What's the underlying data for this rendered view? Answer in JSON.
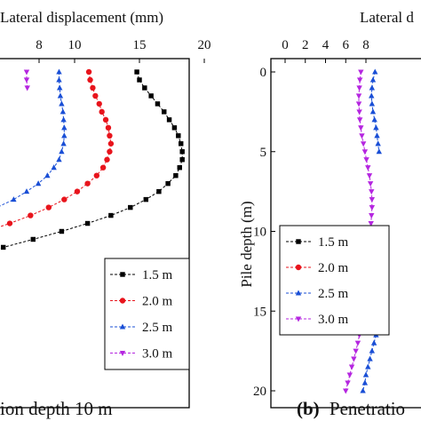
{
  "chart_data": [
    {
      "type": "line",
      "panel": "a",
      "xlabel": "Lateral displacement (mm)",
      "ylabel": "",
      "x_ticks": [
        "8",
        "10",
        "15",
        "20"
      ],
      "xlim": [
        0,
        20
      ],
      "ylim": [
        0,
        20
      ],
      "y_inverted": true,
      "legend_position": "bottom-right",
      "caption_label": "",
      "caption_text": "ion depth 10 m",
      "series": [
        {
          "name": "1.5 m",
          "marker": "square",
          "color": "#000000",
          "points": [
            [
              14.8,
              0
            ],
            [
              15.0,
              0.5
            ],
            [
              15.4,
              1
            ],
            [
              15.9,
              1.5
            ],
            [
              16.4,
              2
            ],
            [
              16.9,
              2.5
            ],
            [
              17.3,
              3
            ],
            [
              17.7,
              3.5
            ],
            [
              18.0,
              4
            ],
            [
              18.2,
              4.5
            ],
            [
              18.3,
              5
            ],
            [
              18.3,
              5.5
            ],
            [
              18.1,
              6
            ],
            [
              17.8,
              6.5
            ],
            [
              17.2,
              7
            ],
            [
              16.5,
              7.5
            ],
            [
              15.5,
              8
            ],
            [
              14.3,
              8.5
            ],
            [
              12.8,
              9
            ],
            [
              11.0,
              9.5
            ],
            [
              9.0,
              10
            ],
            [
              6.8,
              10.5
            ],
            [
              4.5,
              11
            ],
            [
              2.0,
              11.5
            ],
            [
              0.0,
              12
            ]
          ]
        },
        {
          "name": "2.0 m",
          "marker": "circle",
          "color": "#e8141c",
          "points": [
            [
              11.1,
              0
            ],
            [
              11.2,
              0.5
            ],
            [
              11.4,
              1
            ],
            [
              11.6,
              1.5
            ],
            [
              11.9,
              2
            ],
            [
              12.1,
              2.5
            ],
            [
              12.4,
              3
            ],
            [
              12.6,
              3.5
            ],
            [
              12.7,
              4
            ],
            [
              12.8,
              4.5
            ],
            [
              12.7,
              5
            ],
            [
              12.5,
              5.5
            ],
            [
              12.2,
              6
            ],
            [
              11.7,
              6.5
            ],
            [
              11.0,
              7
            ],
            [
              10.2,
              7.5
            ],
            [
              9.2,
              8
            ],
            [
              8.0,
              8.5
            ],
            [
              6.6,
              9
            ],
            [
              5.0,
              9.5
            ],
            [
              3.2,
              10
            ],
            [
              1.2,
              10.5
            ],
            [
              0.0,
              10.8
            ]
          ]
        },
        {
          "name": "2.5 m",
          "marker": "triangle-up",
          "color": "#1a4fd6",
          "points": [
            [
              8.8,
              0
            ],
            [
              8.8,
              0.5
            ],
            [
              8.85,
              1
            ],
            [
              8.9,
              1.5
            ],
            [
              9.0,
              2
            ],
            [
              9.1,
              2.5
            ],
            [
              9.15,
              3
            ],
            [
              9.2,
              3.5
            ],
            [
              9.2,
              4
            ],
            [
              9.15,
              4.5
            ],
            [
              9.0,
              5
            ],
            [
              8.8,
              5.5
            ],
            [
              8.4,
              6
            ],
            [
              7.9,
              6.5
            ],
            [
              7.2,
              7
            ],
            [
              6.3,
              7.5
            ],
            [
              5.3,
              8
            ],
            [
              4.0,
              8.5
            ],
            [
              2.6,
              9
            ],
            [
              1.0,
              9.5
            ],
            [
              0.0,
              9.8
            ]
          ]
        },
        {
          "name": "3.0 m",
          "marker": "triangle-down",
          "color": "#b526e0",
          "points": [
            [
              6.3,
              0
            ],
            [
              6.3,
              0.5
            ],
            [
              6.35,
              1
            ]
          ]
        }
      ]
    },
    {
      "type": "line",
      "panel": "b",
      "xlabel": "Lateral d",
      "ylabel": "Pile depth (m)",
      "x_ticks": [
        "0",
        "2",
        "4",
        "6",
        "8"
      ],
      "y_ticks": [
        "0",
        "5",
        "10",
        "15",
        "20"
      ],
      "xlim": [
        0,
        9
      ],
      "ylim": [
        0,
        20
      ],
      "y_inverted": true,
      "legend_position": "center-left",
      "caption_label": "(b)",
      "caption_text": "Penetratio",
      "series": [
        {
          "name": "1.5 m",
          "marker": "square",
          "color": "#000000",
          "points": []
        },
        {
          "name": "2.0 m",
          "marker": "circle",
          "color": "#e8141c",
          "points": []
        },
        {
          "name": "2.5 m",
          "marker": "triangle-up",
          "color": "#1a4fd6",
          "points": [
            [
              8.9,
              0
            ],
            [
              8.7,
              0.5
            ],
            [
              8.6,
              1
            ],
            [
              8.55,
              1.5
            ],
            [
              8.6,
              2
            ],
            [
              8.7,
              2.5
            ],
            [
              8.85,
              3
            ],
            [
              9.0,
              3.5
            ],
            [
              9.1,
              4
            ],
            [
              9.2,
              4.5
            ],
            [
              9.3,
              5
            ],
            [
              9.3,
              16
            ],
            [
              9.0,
              16.5
            ],
            [
              8.8,
              17
            ],
            [
              8.6,
              17.5
            ],
            [
              8.4,
              18
            ],
            [
              8.2,
              18.5
            ],
            [
              8.0,
              19
            ],
            [
              7.9,
              19.5
            ],
            [
              7.7,
              20
            ]
          ]
        },
        {
          "name": "3.0 m",
          "marker": "triangle-down",
          "color": "#b526e0",
          "points": [
            [
              7.5,
              0
            ],
            [
              7.4,
              0.5
            ],
            [
              7.35,
              1
            ],
            [
              7.3,
              1.5
            ],
            [
              7.3,
              2
            ],
            [
              7.35,
              2.5
            ],
            [
              7.4,
              3
            ],
            [
              7.5,
              3.5
            ],
            [
              7.6,
              4
            ],
            [
              7.75,
              4.5
            ],
            [
              7.9,
              5
            ],
            [
              8.05,
              5.5
            ],
            [
              8.2,
              6
            ],
            [
              8.35,
              6.5
            ],
            [
              8.45,
              7
            ],
            [
              8.55,
              7.5
            ],
            [
              8.6,
              8
            ],
            [
              8.6,
              8.5
            ],
            [
              8.55,
              9
            ],
            [
              8.5,
              9.5
            ],
            [
              8.4,
              10
            ],
            [
              8.3,
              10.5
            ],
            [
              8.2,
              11
            ],
            [
              8.1,
              11.5
            ],
            [
              8.0,
              12
            ],
            [
              7.9,
              12.5
            ],
            [
              7.85,
              13
            ],
            [
              7.8,
              13.5
            ],
            [
              7.75,
              14
            ],
            [
              7.7,
              14.5
            ],
            [
              7.65,
              15
            ],
            [
              7.6,
              15.5
            ],
            [
              7.5,
              16
            ],
            [
              7.35,
              16.5
            ],
            [
              7.2,
              17
            ],
            [
              7.0,
              17.5
            ],
            [
              6.8,
              18
            ],
            [
              6.6,
              18.5
            ],
            [
              6.4,
              19
            ],
            [
              6.2,
              19.5
            ],
            [
              6.0,
              20
            ]
          ]
        }
      ]
    }
  ]
}
